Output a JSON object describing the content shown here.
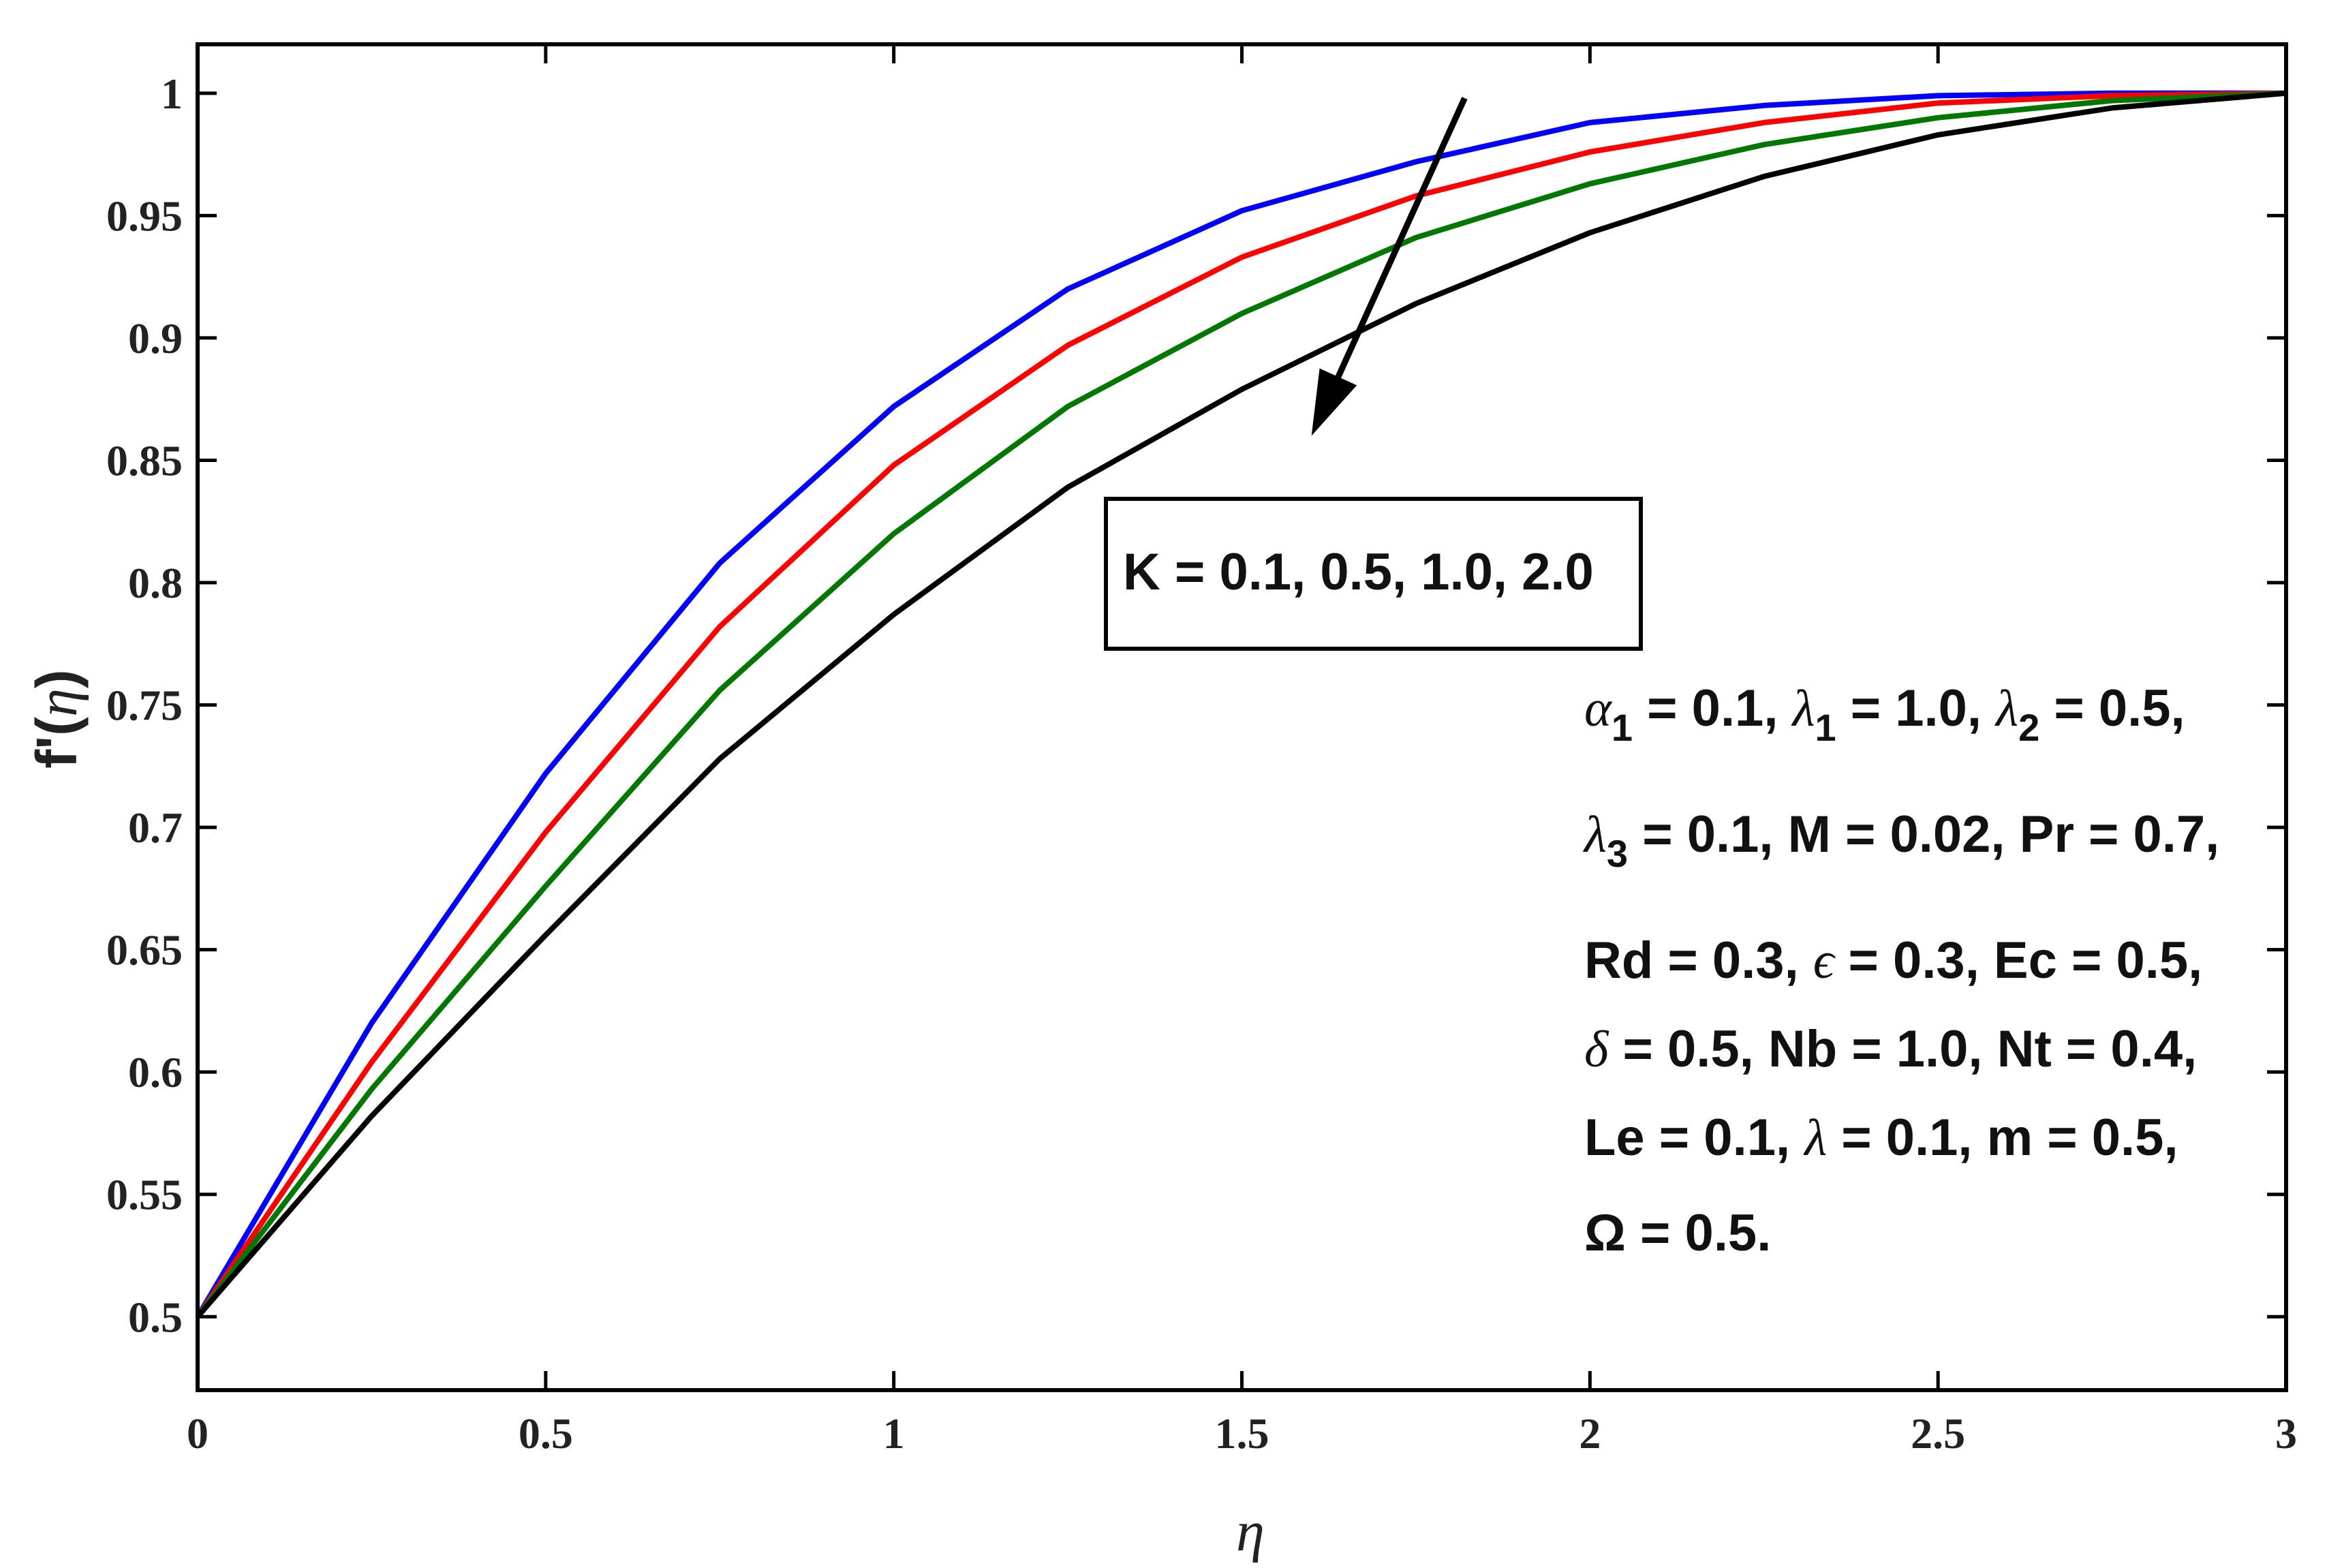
{
  "chart_data": {
    "type": "line",
    "xlabel": "η",
    "ylabel": {
      "prefix": "f'(",
      "var": "η",
      "suffix": ")"
    },
    "xlim": [
      0,
      3
    ],
    "ylim": [
      0.47,
      1.02
    ],
    "xticks": [
      {
        "v": 0,
        "label": "0"
      },
      {
        "v": 0.5,
        "label": "0.5"
      },
      {
        "v": 1,
        "label": "1"
      },
      {
        "v": 1.5,
        "label": "1.5"
      },
      {
        "v": 2,
        "label": "2"
      },
      {
        "v": 2.5,
        "label": "2.5"
      },
      {
        "v": 3,
        "label": "3"
      }
    ],
    "yticks": [
      {
        "v": 0.5,
        "label": "0.5"
      },
      {
        "v": 0.55,
        "label": "0.55"
      },
      {
        "v": 0.6,
        "label": "0.6"
      },
      {
        "v": 0.65,
        "label": "0.65"
      },
      {
        "v": 0.7,
        "label": "0.7"
      },
      {
        "v": 0.75,
        "label": "0.75"
      },
      {
        "v": 0.8,
        "label": "0.8"
      },
      {
        "v": 0.85,
        "label": "0.85"
      },
      {
        "v": 0.9,
        "label": "0.9"
      },
      {
        "v": 0.95,
        "label": "0.95"
      },
      {
        "v": 1,
        "label": "1"
      }
    ],
    "grid": false,
    "x": [
      0,
      0.25,
      0.5,
      0.75,
      1.0,
      1.25,
      1.5,
      1.75,
      2.0,
      2.25,
      2.5,
      2.75,
      3.0
    ],
    "series": [
      {
        "color": "#0000ff",
        "values": [
          0.5,
          0.62,
          0.722,
          0.808,
          0.872,
          0.92,
          0.952,
          0.972,
          0.988,
          0.995,
          0.999,
          1.0,
          1.0
        ]
      },
      {
        "color": "#ff0000",
        "values": [
          0.5,
          0.604,
          0.698,
          0.782,
          0.848,
          0.897,
          0.933,
          0.958,
          0.976,
          0.988,
          0.996,
          0.999,
          1.0
        ]
      },
      {
        "color": "#007700",
        "values": [
          0.5,
          0.593,
          0.676,
          0.756,
          0.82,
          0.872,
          0.91,
          0.941,
          0.963,
          0.979,
          0.99,
          0.997,
          1.0
        ]
      },
      {
        "color": "#000000",
        "values": [
          0.5,
          0.582,
          0.656,
          0.728,
          0.787,
          0.839,
          0.879,
          0.914,
          0.943,
          0.966,
          0.983,
          0.994,
          1.0
        ]
      }
    ],
    "annotation_box": "K = 0.1, 0.5, 1.0, 2.0",
    "arrow": {
      "from": [
        1.82,
        0.998
      ],
      "to": [
        1.6,
        0.86
      ]
    },
    "parameters": [
      "α_1 = 0.1, λ_1 = 1.0, λ_2 = 0.5,",
      "λ_3 = 0.1, M = 0.02, Pr = 0.7,",
      "Rd = 0.3, ϵ = 0.3, Ec = 0.5,",
      "δ = 0.5, Nb = 1.0, Nt = 0.4,",
      "Le = 0.1, λ = 0.1, m = 0.5,",
      "Ω = 0.5."
    ]
  }
}
